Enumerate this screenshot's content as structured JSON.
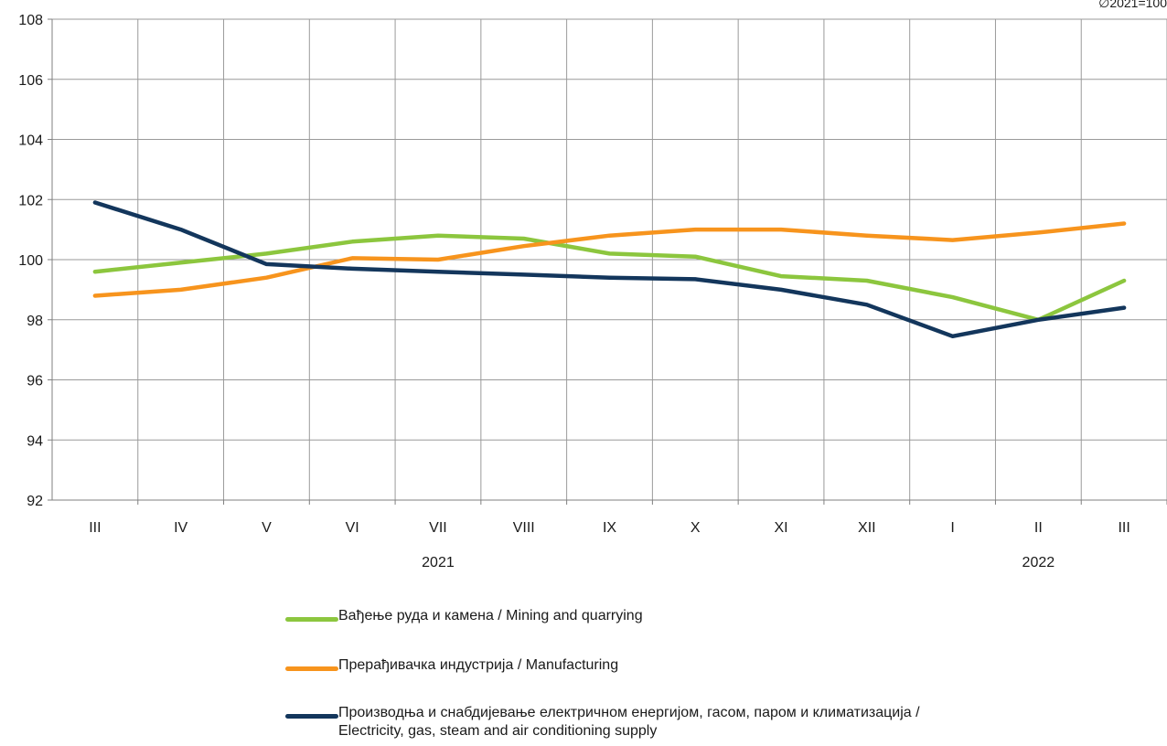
{
  "corner_note": "∅2021=100",
  "legend": {
    "mining": "Вађење руда и камена / Mining and quarrying",
    "manufacturing": "Прерађивачка индустрија / Manufacturing",
    "electricity_line1": "Производња и снабдијевање електричном енергијом, гасом, паром и климатизација /",
    "electricity_line2": "Electricity, gas, steam and air conditioning supply"
  },
  "chart_data": {
    "type": "line",
    "categories": [
      "III",
      "IV",
      "V",
      "VI",
      "VII",
      "VIII",
      "IX",
      "X",
      "XI",
      "XII",
      "I",
      "II",
      "III"
    ],
    "year_labels": [
      {
        "text": "2021",
        "category_index": 4
      },
      {
        "text": "2022",
        "category_index": 11
      }
    ],
    "ylim": [
      92,
      108
    ],
    "yticks": [
      92,
      94,
      96,
      98,
      100,
      102,
      104,
      106,
      108
    ],
    "grid": true,
    "legend_position": "bottom",
    "series": [
      {
        "name": "Вађење руда и камена / Mining and quarrying",
        "color": "#8cc63e",
        "values": [
          99.6,
          99.9,
          100.2,
          100.6,
          100.8,
          100.7,
          100.2,
          100.1,
          99.45,
          99.3,
          98.75,
          98.0,
          99.3
        ]
      },
      {
        "name": "Прерађивачка индустрија / Manufacturing",
        "color": "#f7941d",
        "values": [
          98.8,
          99.0,
          99.4,
          100.05,
          100.0,
          100.45,
          100.8,
          101.0,
          101.0,
          100.8,
          100.65,
          100.9,
          101.2
        ]
      },
      {
        "name": "Производња и снабдијевање електричном енергијом, гасом, паром и климатизација / Electricity, gas, steam and air conditioning supply",
        "color": "#13365c",
        "values": [
          101.9,
          101.0,
          99.85,
          99.7,
          99.6,
          99.5,
          99.4,
          99.35,
          99.0,
          98.5,
          97.45,
          98.0,
          98.4
        ]
      }
    ]
  }
}
